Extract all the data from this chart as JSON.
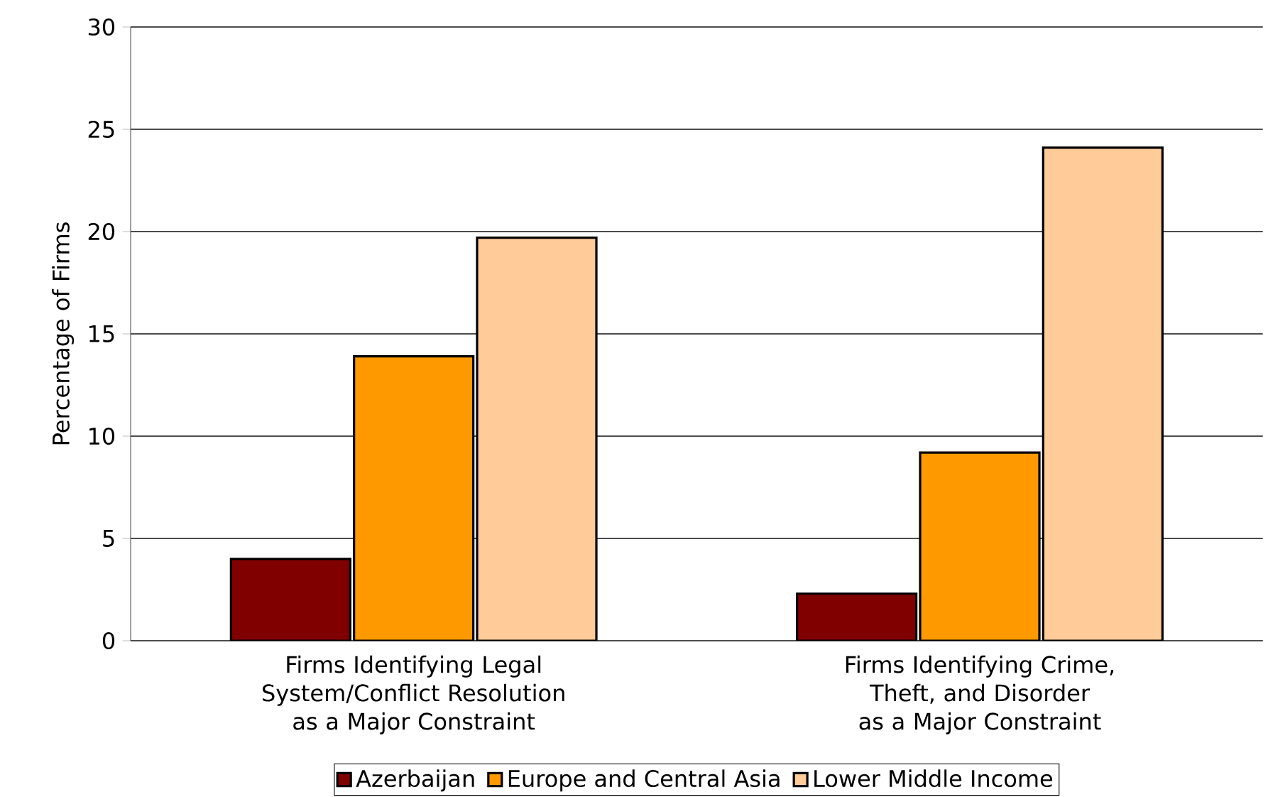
{
  "chart_data": {
    "type": "bar",
    "ylabel": "Percentage of Firms",
    "categories": [
      "Firms Identifying Legal System/Conflict Resolution as a Major Constraint",
      "Firms Identifying Crime, Theft, and Disorder as a Major Constraint"
    ],
    "series": [
      {
        "name": "Azerbaijan",
        "color": "#800000",
        "values": [
          4.0,
          2.3
        ]
      },
      {
        "name": "Europe and Central Asia",
        "color": "#ff9900",
        "values": [
          13.9,
          9.2
        ]
      },
      {
        "name": "Lower Middle Income",
        "color": "#ffcc99",
        "values": [
          19.7,
          24.1
        ]
      }
    ],
    "ylim": [
      0,
      30
    ],
    "yticks": [
      0,
      5,
      10,
      15,
      20,
      25,
      30
    ],
    "grid": "y",
    "legend": "bottom"
  }
}
